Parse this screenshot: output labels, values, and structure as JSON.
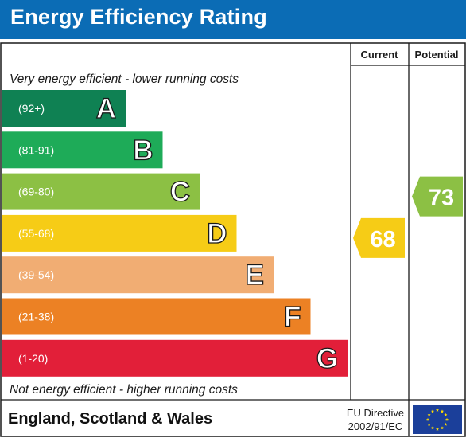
{
  "title": "Energy Efficiency Rating",
  "headers": {
    "current": "Current",
    "potential": "Potential"
  },
  "top_note": "Very energy efficient - lower running costs",
  "bottom_note": "Not energy efficient - higher running costs",
  "footer": {
    "country": "England, Scotland & Wales",
    "directive_line1": "EU Directive",
    "directive_line2": "2002/91/EC"
  },
  "chart_data": {
    "type": "bar",
    "bands": [
      {
        "letter": "A",
        "range": "(92+)",
        "min": 92,
        "max": 100,
        "color": "#0f8153"
      },
      {
        "letter": "B",
        "range": "(81-91)",
        "min": 81,
        "max": 91,
        "color": "#1eab58"
      },
      {
        "letter": "C",
        "range": "(69-80)",
        "min": 69,
        "max": 80,
        "color": "#8cc044"
      },
      {
        "letter": "D",
        "range": "(55-68)",
        "min": 55,
        "max": 68,
        "color": "#f6cc16"
      },
      {
        "letter": "E",
        "range": "(39-54)",
        "min": 39,
        "max": 54,
        "color": "#f1ad73"
      },
      {
        "letter": "F",
        "range": "(21-38)",
        "min": 21,
        "max": 38,
        "color": "#ec8124"
      },
      {
        "letter": "G",
        "range": "(1-20)",
        "min": 1,
        "max": 20,
        "color": "#e21f39"
      }
    ],
    "current": {
      "value": 68,
      "label": "68",
      "band": "D",
      "color": "#f6cc16"
    },
    "potential": {
      "value": 73,
      "label": "73",
      "band": "C",
      "color": "#8cc044"
    }
  },
  "colors": {
    "title_bar": "#0b6cb5",
    "grid": "#1a1a1a",
    "eu_flag": "#1b3f9a",
    "eu_star": "#ffde00"
  }
}
